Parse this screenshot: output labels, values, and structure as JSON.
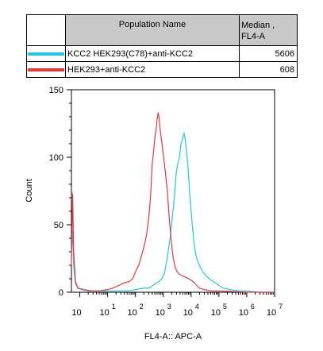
{
  "legend": {
    "header_name": "Population Name",
    "header_median": "Median ,",
    "header_median_unit": "FL4-A",
    "rows": [
      {
        "name": "KCC2 HEK293(C78)+anti-KCC2",
        "median": "5606",
        "color": "#1ec8e6"
      },
      {
        "name": "HEK293+anti-KCC2",
        "median": "608",
        "color": "#e8363a"
      }
    ]
  },
  "chart_data": {
    "type": "line",
    "xlabel": "FL4-A:: APC-A",
    "ylabel": "Count",
    "xscale": "log",
    "xlim": [
      0.5,
      10000000
    ],
    "ylim": [
      0,
      150
    ],
    "yticks": [
      0,
      50,
      100,
      150
    ],
    "xtick_exponents": [
      "",
      "1",
      "2",
      "3",
      "4",
      "5",
      "6",
      "7"
    ],
    "xtick_values": [
      1,
      10,
      100,
      1000,
      10000,
      100000,
      1000000,
      10000000
    ],
    "grid": false,
    "legend_placement": "top",
    "series": [
      {
        "name": "KCC2 HEK293(C78)+anti-KCC2",
        "color": "#1ec8e6",
        "x": [
          0.5,
          0.55,
          0.6,
          0.7,
          0.9,
          1.5,
          3,
          10,
          30,
          60,
          100,
          200,
          300,
          500,
          700,
          900,
          1100,
          1300,
          1500,
          1800,
          2100,
          2500,
          2900,
          3300,
          3800,
          4300,
          4800,
          5200,
          5600,
          6000,
          6500,
          7000,
          7600,
          8200,
          9000,
          10000,
          11500,
          13000,
          15000,
          18000,
          22000,
          27000,
          35000,
          45000,
          60000,
          75000,
          100000,
          150000,
          250000,
          500000,
          1000000,
          3000000,
          10000000
        ],
        "y": [
          28,
          45,
          20,
          6,
          3,
          2,
          1,
          1,
          1,
          1,
          2,
          3,
          3,
          6,
          8,
          10,
          14,
          22,
          30,
          42,
          55,
          70,
          88,
          95,
          100,
          110,
          112,
          116,
          118,
          115,
          108,
          102,
          95,
          85,
          72,
          60,
          46,
          35,
          27,
          22,
          18,
          15,
          12,
          10,
          8,
          7,
          5,
          3,
          2,
          1,
          1,
          0,
          0
        ]
      },
      {
        "name": "HEK293+anti-KCC2",
        "color": "#e8363a",
        "x": [
          0.5,
          0.55,
          0.6,
          0.7,
          0.85,
          1.2,
          2,
          5,
          10,
          15,
          25,
          40,
          60,
          80,
          100,
          130,
          160,
          200,
          250,
          300,
          350,
          400,
          450,
          500,
          550,
          600,
          650,
          700,
          800,
          900,
          1000,
          1100,
          1200,
          1400,
          1600,
          1800,
          2000,
          2300,
          2700,
          3200,
          4000,
          5000,
          6500,
          8000,
          10000,
          13000,
          16000,
          20000,
          30000,
          50000,
          100000,
          1000000,
          10000000
        ],
        "y": [
          20,
          73,
          30,
          8,
          3,
          2,
          1,
          1,
          2,
          3,
          5,
          7,
          8,
          10,
          15,
          20,
          26,
          33,
          42,
          55,
          72,
          95,
          105,
          115,
          120,
          128,
          133,
          130,
          118,
          110,
          102,
          95,
          88,
          75,
          58,
          45,
          35,
          25,
          18,
          15,
          13,
          12,
          11,
          10,
          9,
          7,
          5,
          3,
          2,
          1,
          1,
          0,
          0
        ]
      }
    ]
  }
}
